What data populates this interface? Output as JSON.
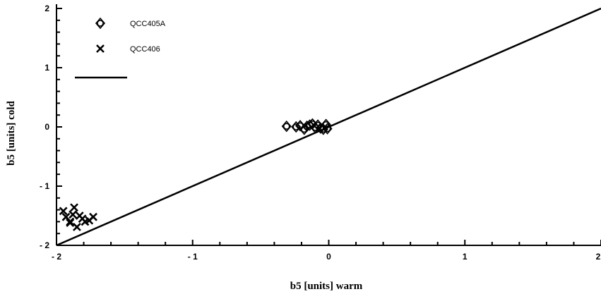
{
  "chart_data": {
    "type": "scatter",
    "title": "",
    "xlabel": "b5 [units] warm",
    "ylabel": "b5 [units] cold",
    "xlim": [
      -2,
      2
    ],
    "ylim": [
      -2,
      2
    ],
    "x_ticks": [
      "- 2",
      "- 1",
      "0",
      "1",
      "2"
    ],
    "y_ticks": [
      "2",
      "1",
      "0",
      "- 1",
      "- 2"
    ],
    "grid": false,
    "legend_position": "top-left",
    "series": [
      {
        "name": "QCC405A",
        "marker": "circle-diamond",
        "color": "#000000",
        "x": [
          -0.31,
          -0.24,
          -0.21,
          -0.18,
          -0.16,
          -0.14,
          -0.12,
          -0.1,
          -0.08,
          -0.06,
          -0.04,
          -0.02,
          -0.01
        ],
        "y": [
          0.01,
          0.0,
          0.02,
          -0.04,
          0.01,
          0.03,
          0.05,
          -0.01,
          0.03,
          -0.02,
          -0.04,
          0.04,
          -0.03
        ]
      },
      {
        "name": "QCC406",
        "marker": "x",
        "color": "#000000",
        "x": [
          -1.95,
          -1.93,
          -1.9,
          -1.87,
          -1.85,
          -1.83,
          -1.81,
          -1.79,
          -1.76,
          -1.73,
          -1.88,
          -1.9
        ],
        "y": [
          -1.42,
          -1.52,
          -1.6,
          -1.36,
          -1.69,
          -1.5,
          -1.55,
          -1.6,
          -1.58,
          -1.52,
          -1.48,
          -1.62
        ]
      },
      {
        "name": "",
        "type": "line",
        "color": "#000000",
        "x": [
          -2,
          2
        ],
        "y": [
          -2,
          2
        ]
      }
    ]
  }
}
